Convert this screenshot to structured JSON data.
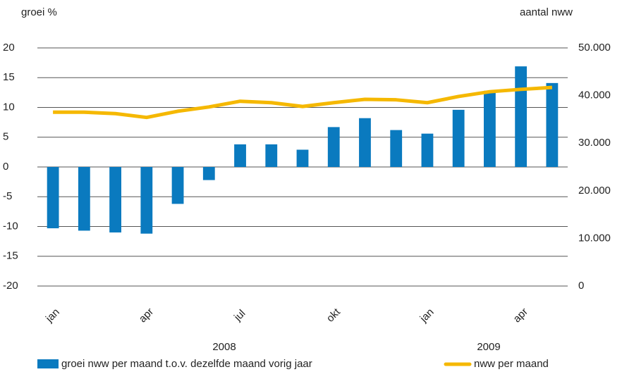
{
  "chart_data": {
    "type": "bar_line",
    "y_label": "groei %",
    "y2_label": "aantal nww",
    "categories": [
      "jan",
      null,
      null,
      "apr",
      null,
      null,
      "jul",
      null,
      null,
      "okt",
      null,
      null,
      "jan",
      null,
      null,
      "apr",
      null
    ],
    "year_labels": [
      "2008",
      "2009"
    ],
    "series": [
      {
        "name": "groei nww per maand t.o.v. dezelfde maand vorig jaar",
        "type": "bar",
        "color": "#0a7abf",
        "values": [
          -10.3,
          -10.7,
          -11,
          -11.2,
          -6.2,
          -2.2,
          3.8,
          3.8,
          2.9,
          6.7,
          8.2,
          6.2,
          5.6,
          9.6,
          12.8,
          16.9,
          14.1
        ]
      },
      {
        "name": "nww per maand",
        "type": "line",
        "axis": "y2",
        "color": "#f5b800",
        "values": [
          36500,
          36500,
          36200,
          35400,
          36700,
          37600,
          38800,
          38500,
          37700,
          38500,
          39200,
          39100,
          38500,
          39800,
          40800,
          41300,
          41700
        ]
      }
    ],
    "ylim": [
      -20,
      20
    ],
    "yticks": [
      -20,
      -15,
      -10,
      -5,
      0,
      5,
      10,
      15,
      20
    ],
    "y2lim": [
      0,
      50000
    ],
    "y2ticks": [
      0,
      {
        "value": 10000,
        "label": "10.000"
      },
      {
        "value": 20000,
        "label": "20.000"
      },
      {
        "value": 30000,
        "label": "30.000"
      },
      {
        "value": 40000,
        "label": "40.000"
      },
      {
        "value": 50000,
        "label": "50.000"
      }
    ],
    "grid": true
  }
}
